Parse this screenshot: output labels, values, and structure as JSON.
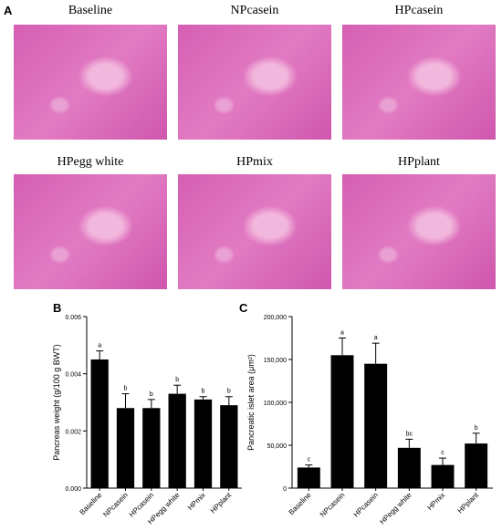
{
  "panel_a": {
    "label": "A",
    "images": [
      "Baseline",
      "NPcasein",
      "HPcasein",
      "HPegg white",
      "HPmix",
      "HPplant"
    ]
  },
  "chart_data": [
    {
      "type": "bar",
      "panel": "B",
      "y_label": "Pancreas weight (g/100 g BWT)",
      "categories": [
        "Baseline",
        "NPcasein",
        "HPcasein",
        "HPegg white",
        "HPmix",
        "HPplant"
      ],
      "values": [
        0.0045,
        0.0028,
        0.0028,
        0.0033,
        0.0031,
        0.0029
      ],
      "errors": [
        0.0003,
        0.0005,
        0.0003,
        0.0003,
        0.0001,
        0.0003
      ],
      "letters": [
        "a",
        "b",
        "b",
        "b",
        "b",
        "b"
      ],
      "color": "#000000",
      "ylim": [
        0,
        0.006
      ],
      "yticks": [
        {
          "value": 0,
          "label": "0.000"
        },
        {
          "value": 0.002,
          "label": "0.002"
        },
        {
          "value": 0.004,
          "label": "0.004"
        },
        {
          "value": 0.006,
          "label": "0.006"
        }
      ]
    },
    {
      "type": "bar",
      "panel": "C",
      "y_label": "Pancreatic islet area (μm²)",
      "categories": [
        "Baseline",
        "NPcasein",
        "HPcasein",
        "HPegg white",
        "HPmix",
        "HPplant"
      ],
      "values": [
        24000,
        155000,
        145000,
        47000,
        27000,
        52000
      ],
      "errors": [
        3000,
        20000,
        24000,
        10000,
        8000,
        12000
      ],
      "letters": [
        "c",
        "a",
        "a",
        "bc",
        "c",
        "b"
      ],
      "color": "#000000",
      "ylim": [
        0,
        200000
      ],
      "yticks": [
        0,
        {
          "value": 50000,
          "label": "50,000"
        },
        {
          "value": 100000,
          "label": "100,000"
        },
        {
          "value": 150000,
          "label": "150,000"
        },
        {
          "value": 200000,
          "label": "200,000"
        }
      ]
    }
  ]
}
